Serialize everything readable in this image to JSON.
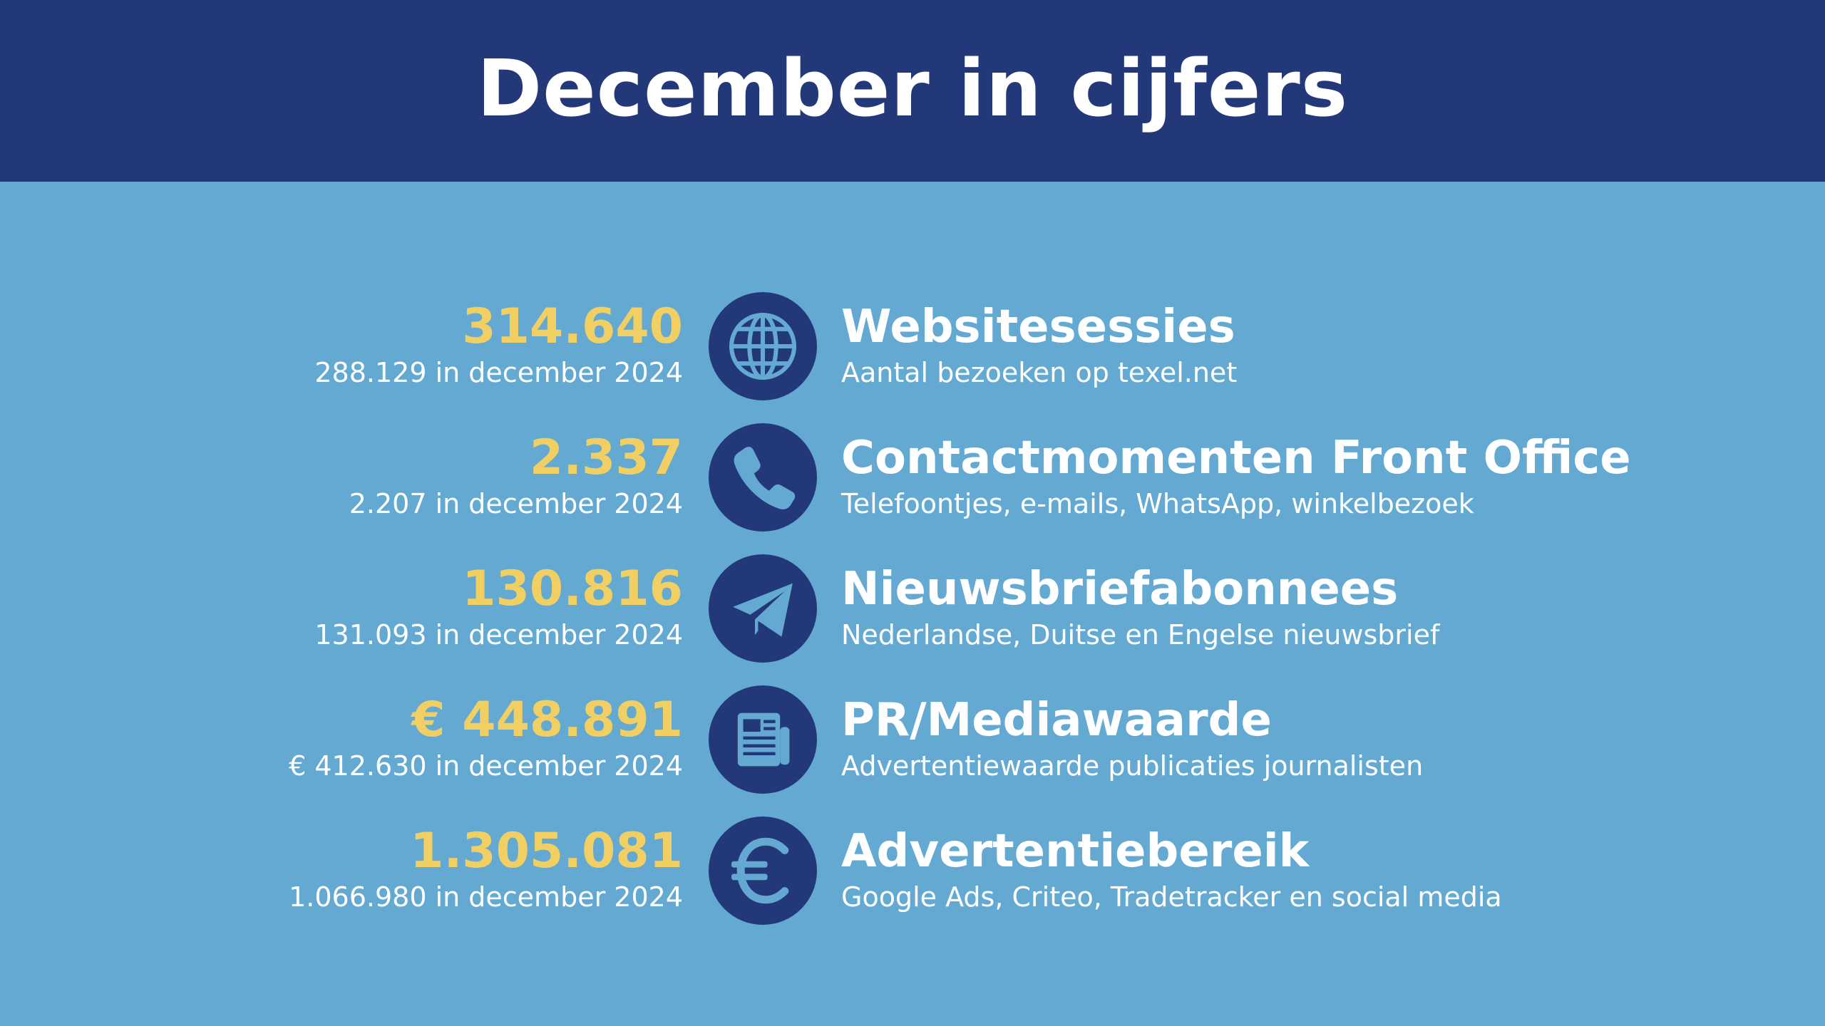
{
  "title": "December in cijfers",
  "colors": {
    "header_bg": "#233879",
    "body_bg": "#63a9d2",
    "value_yellow": "#f2cf63",
    "icon_bg": "#233879",
    "text_white": "#ffffff"
  },
  "stats": [
    {
      "value": "314.640",
      "compare": "288.129 in december 2024",
      "icon": "globe-icon",
      "label": "Websitesessies",
      "description": "Aantal bezoeken op texel.net"
    },
    {
      "value": "2.337",
      "compare": "2.207 in december 2024",
      "icon": "phone-icon",
      "label": "Contactmomenten Front Office",
      "description": "Telefoontjes, e-mails, WhatsApp, winkelbezoek"
    },
    {
      "value": "130.816",
      "compare": "131.093 in december 2024",
      "icon": "paper-plane-icon",
      "label": "Nieuwsbriefabonnees",
      "description": "Nederlandse, Duitse en Engelse nieuwsbrief"
    },
    {
      "value": "€ 448.891",
      "compare": "€ 412.630 in december 2024",
      "icon": "newspaper-icon",
      "label": "PR/Mediawaarde",
      "description": "Advertentiewaarde publicaties journalisten"
    },
    {
      "value": "1.305.081",
      "compare": "1.066.980 in december 2024",
      "icon": "euro-icon",
      "label": "Advertentiebereik",
      "description": "Google Ads, Criteo, Tradetracker en social media"
    }
  ]
}
